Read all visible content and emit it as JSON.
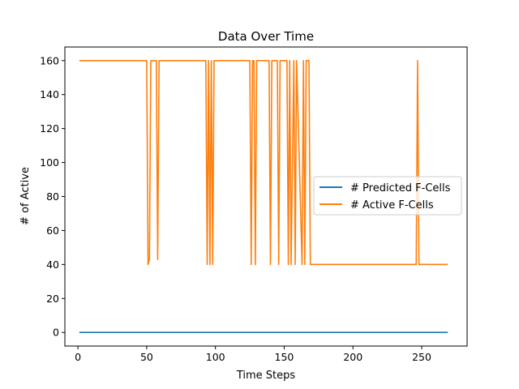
{
  "chart_data": {
    "type": "line",
    "title": "Data Over Time",
    "xlabel": "Time Steps",
    "ylabel": "# of Active",
    "xlim": [
      -9.5,
      283
    ],
    "ylim": [
      -8,
      168
    ],
    "xticks": [
      0,
      50,
      100,
      150,
      200,
      250
    ],
    "yticks": [
      0,
      20,
      40,
      60,
      80,
      100,
      120,
      140,
      160
    ],
    "grid": false,
    "legend_position": "center-right",
    "series": [
      {
        "name": "# Predicted F-Cells",
        "color": "#1f77b4",
        "x": [
          1,
          269
        ],
        "values": [
          0,
          0
        ]
      },
      {
        "name": "# Active F-Cells",
        "color": "#ff7f0e",
        "x": [
          1,
          50,
          51,
          52,
          53,
          57,
          58,
          59,
          93,
          94,
          95,
          96,
          97,
          98,
          99,
          100,
          125,
          126,
          127,
          128,
          129,
          130,
          131,
          139,
          140,
          141,
          142,
          145,
          146,
          147,
          148,
          152,
          153,
          154,
          155,
          157,
          158,
          159,
          163,
          164,
          165,
          166,
          168,
          169,
          246,
          247,
          248,
          269
        ],
        "values": [
          160,
          160,
          40,
          43,
          160,
          160,
          43,
          160,
          160,
          40,
          160,
          40,
          160,
          40,
          160,
          160,
          160,
          40,
          160,
          160,
          40,
          160,
          160,
          160,
          40,
          160,
          160,
          160,
          40,
          160,
          160,
          160,
          40,
          160,
          40,
          160,
          40,
          160,
          40,
          160,
          40,
          160,
          160,
          40,
          40,
          160,
          40,
          40
        ]
      }
    ]
  }
}
